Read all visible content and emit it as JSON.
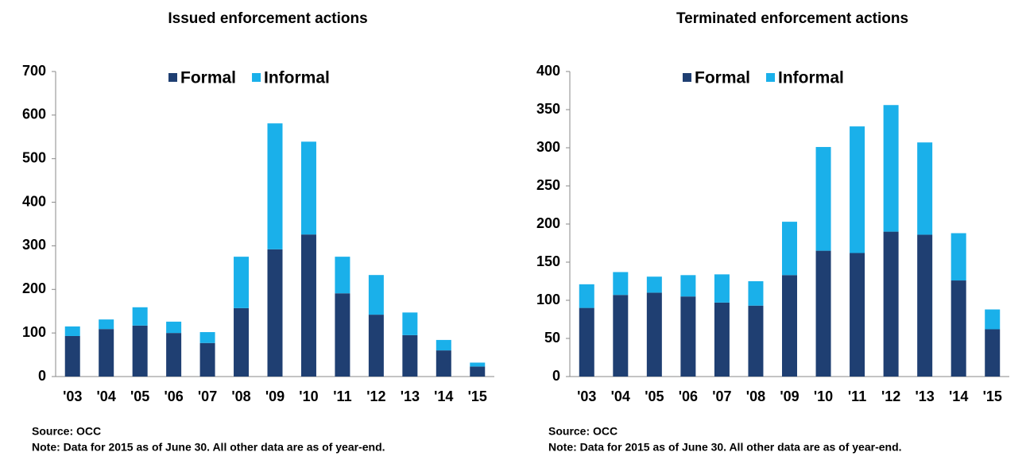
{
  "chart_data": [
    {
      "type": "bar",
      "stacked": true,
      "title": "Issued enforcement actions",
      "categories": [
        "'03",
        "'04",
        "'05",
        "'06",
        "'07",
        "'08",
        "'09",
        "'10",
        "'11",
        "'12",
        "'13",
        "'14",
        "'15"
      ],
      "series": [
        {
          "name": "Formal",
          "color": "#1f3f72",
          "values": [
            93,
            109,
            117,
            100,
            77,
            157,
            292,
            326,
            191,
            142,
            95,
            60,
            23
          ]
        },
        {
          "name": "Informal",
          "color": "#1ab0ea",
          "values": [
            22,
            22,
            42,
            26,
            25,
            118,
            289,
            213,
            84,
            91,
            52,
            24,
            9
          ]
        }
      ],
      "ylim": [
        0,
        700
      ],
      "yticks": [
        0,
        100,
        200,
        300,
        400,
        500,
        600,
        700
      ],
      "legend": "top",
      "source": "Source:  OCC",
      "note": "Note: Data for 2015 as of June 30. All  other data are as of year-end."
    },
    {
      "type": "bar",
      "stacked": true,
      "title": "Terminated enforcement actions",
      "categories": [
        "'03",
        "'04",
        "'05",
        "'06",
        "'07",
        "'08",
        "'09",
        "'10",
        "'11",
        "'12",
        "'13",
        "'14",
        "'15"
      ],
      "series": [
        {
          "name": "Formal",
          "color": "#1f3f72",
          "values": [
            90,
            107,
            110,
            105,
            97,
            93,
            133,
            165,
            162,
            190,
            186,
            126,
            62
          ]
        },
        {
          "name": "Informal",
          "color": "#1ab0ea",
          "values": [
            31,
            30,
            21,
            28,
            37,
            32,
            70,
            136,
            166,
            166,
            121,
            62,
            26
          ]
        }
      ],
      "ylim": [
        0,
        400
      ],
      "yticks": [
        0,
        50,
        100,
        150,
        200,
        250,
        300,
        350,
        400
      ],
      "legend": "top",
      "source": "Source:  OCC",
      "note": "Note: Data for 2015 as of June 30. All  other data are as of year-end."
    }
  ]
}
